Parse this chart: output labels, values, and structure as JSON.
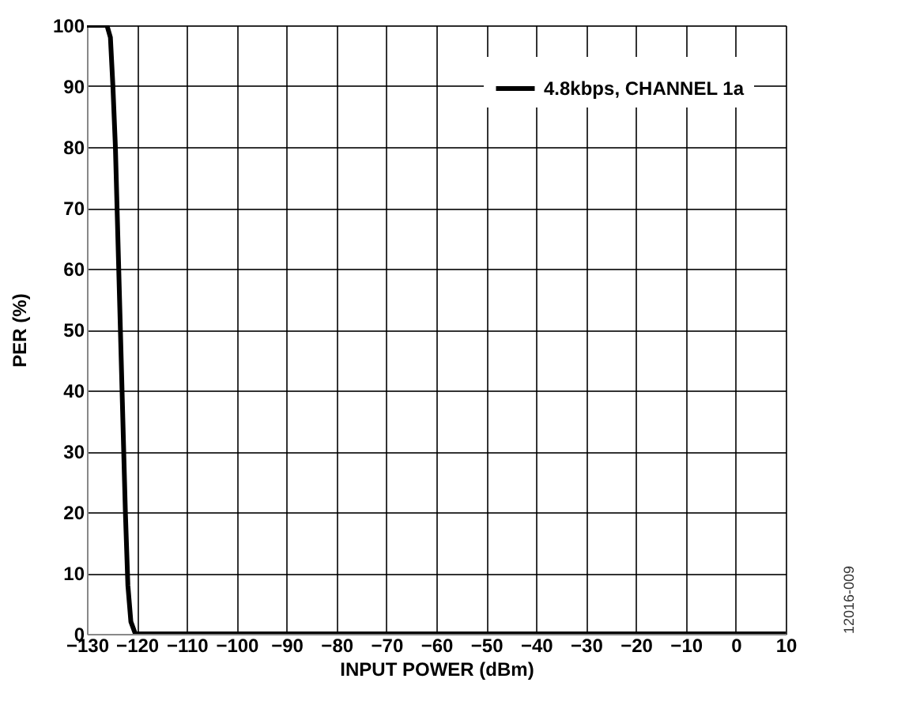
{
  "chart_data": {
    "type": "line",
    "xlabel": "INPUT POWER (dBm)",
    "ylabel": "PER (%)",
    "x": [
      -130,
      -126,
      -125.3,
      -124.8,
      -124.3,
      -123.8,
      -123.3,
      -122.8,
      -122.3,
      -121.8,
      -121.2,
      -120.3,
      -110,
      10
    ],
    "series": [
      {
        "name": "4.8kbps, CHANNEL 1a",
        "color": "#000000",
        "values": [
          100,
          100,
          98,
          90,
          80,
          65,
          50,
          35,
          20,
          8,
          2,
          0,
          0,
          0
        ]
      }
    ],
    "xlim": [
      -130,
      10
    ],
    "xticks": [
      -130,
      -120,
      -110,
      -100,
      -90,
      -80,
      -70,
      -60,
      -50,
      -40,
      -30,
      -20,
      -10,
      0,
      10
    ],
    "ylim": [
      0,
      100
    ],
    "yticks": [
      0,
      10,
      20,
      30,
      40,
      50,
      60,
      70,
      80,
      90,
      100
    ],
    "grid": true,
    "legend": "top right",
    "marker": "none",
    "line_style": "solid",
    "annotations": [
      "12016-009"
    ]
  }
}
